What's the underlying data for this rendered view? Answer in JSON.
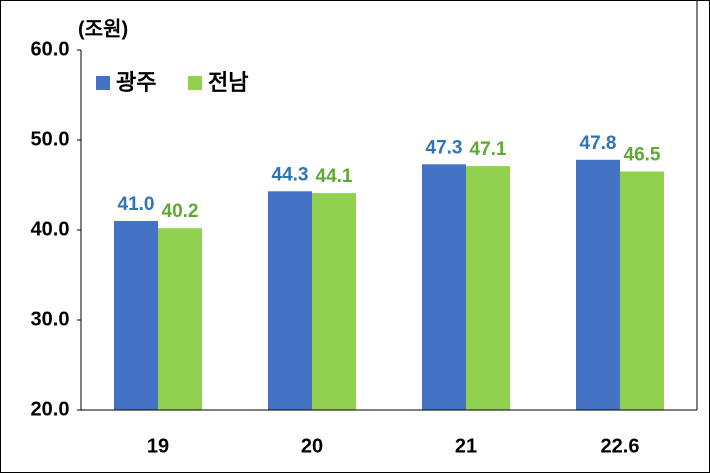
{
  "chart_data": {
    "type": "bar",
    "y_unit_label": "(조원)",
    "categories": [
      "19",
      "20",
      "21",
      "22.6"
    ],
    "series": [
      {
        "name": "광주",
        "color": "#4472c4",
        "values": [
          41.0,
          44.3,
          47.3,
          47.8
        ],
        "value_labels": [
          "41.0",
          "44.3",
          "47.3",
          "47.8"
        ]
      },
      {
        "name": "전남",
        "color": "#92d050",
        "values": [
          40.2,
          44.1,
          47.1,
          46.5
        ],
        "value_labels": [
          "40.2",
          "44.1",
          "47.1",
          "46.5"
        ]
      }
    ],
    "ylim": [
      20,
      60
    ],
    "yticks": [
      {
        "value": 20,
        "label": "20.0"
      },
      {
        "value": 30,
        "label": "30.0"
      },
      {
        "value": 40,
        "label": "40.0"
      },
      {
        "value": 50,
        "label": "50.0"
      },
      {
        "value": 60,
        "label": "60.0"
      }
    ],
    "legend": "top-left"
  }
}
